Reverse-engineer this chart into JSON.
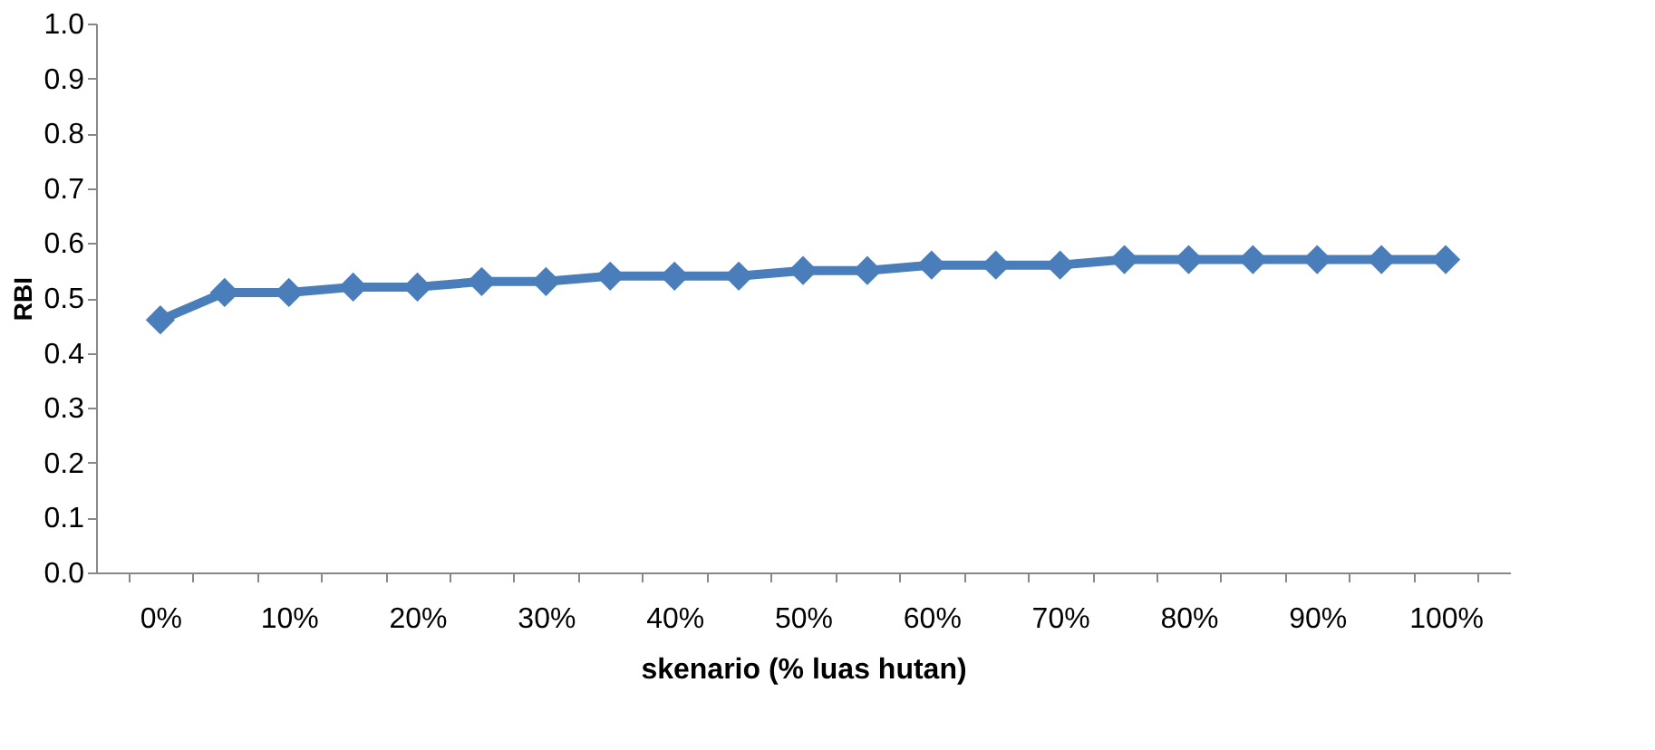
{
  "chart_data": {
    "type": "line",
    "xlabel": "skenario (% luas hutan)",
    "ylabel": "RBI",
    "categories": [
      "0%",
      null,
      "10%",
      null,
      "20%",
      null,
      "30%",
      null,
      "40%",
      null,
      "50%",
      null,
      "60%",
      null,
      "70%",
      null,
      "80%",
      null,
      "90%",
      null,
      "100%"
    ],
    "series": [
      {
        "color": "#4a7ebb",
        "values": [
          0.46,
          0.51,
          0.51,
          0.52,
          0.52,
          0.53,
          0.53,
          0.54,
          0.54,
          0.54,
          0.55,
          0.55,
          0.56,
          0.56,
          0.56,
          0.57,
          0.57,
          0.57,
          0.57,
          0.57,
          0.57
        ]
      }
    ],
    "ylim": [
      0,
      1
    ],
    "yticks": [
      {
        "value": 0,
        "label": "0.0"
      },
      {
        "value": 0.1,
        "label": "0.1"
      },
      {
        "value": 0.2,
        "label": "0.2"
      },
      {
        "value": 0.3,
        "label": "0.3"
      },
      {
        "value": 0.4,
        "label": "0.4"
      },
      {
        "value": 0.5,
        "label": "0.5"
      },
      {
        "value": 0.6,
        "label": "0.6"
      },
      {
        "value": 0.7,
        "label": "0.7"
      },
      {
        "value": 0.8,
        "label": "0.8"
      },
      {
        "value": 0.9,
        "label": "0.9"
      },
      {
        "value": 1,
        "label": "1.0"
      }
    ],
    "grid": false,
    "marker": "diamond",
    "line_style": "solid"
  }
}
